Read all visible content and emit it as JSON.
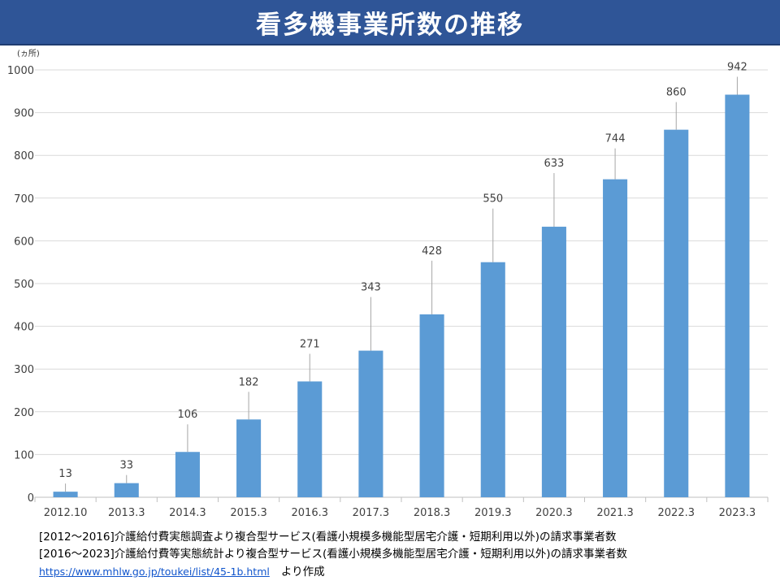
{
  "chart_data": {
    "type": "bar",
    "title": "看多機事業所数の推移",
    "ylabel": "(ヵ所)",
    "xlabel": "",
    "categories": [
      "2012.10",
      "2013.3",
      "2014.3",
      "2015.3",
      "2016.3",
      "2017.3",
      "2018.3",
      "2019.3",
      "2020.3",
      "2021.3",
      "2022.3",
      "2023.3"
    ],
    "values": [
      13,
      33,
      106,
      182,
      271,
      343,
      428,
      550,
      633,
      744,
      860,
      942
    ],
    "ylim": [
      0,
      1000
    ],
    "yticks": [
      0,
      100,
      200,
      300,
      400,
      500,
      600,
      700,
      800,
      900,
      1000
    ],
    "grid": true,
    "bar_color": "#5b9bd5",
    "gridline_color": "#d9d9d9",
    "title_bar_color": "#2f5597"
  },
  "source": {
    "line1": "[2012～2016]介護給付費実態調査より複合型サービス(看護小規模多機能型居宅介護・短期利用以外)の請求事業者数",
    "line2": "[2016～2023]介護給付費等実態統計より複合型サービス(看護小規模多機能型居宅介護・短期利用以外)の請求事業者数",
    "link_text": "https://www.mhlw.go.jp/toukei/list/45-1b.html",
    "suffix": "より作成"
  }
}
